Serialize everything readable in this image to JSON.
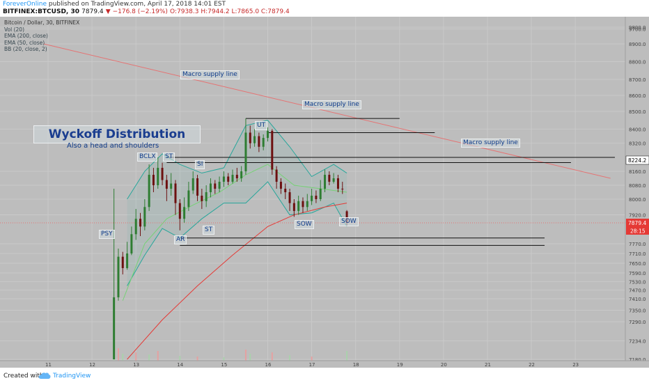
{
  "header": {
    "author": "ForeverOnline",
    "published": " published on TradingView.com, April 17, 2018 14:01 EST",
    "symbol": "BITFINEX:BTCUSD, 30",
    "last": "7879.4",
    "change": "▼ −176.8 (−2.19%)",
    "ohlc": "O:7938.3 H:7944.2 L:7865.0 C:7879.4"
  },
  "legend": {
    "main": "Bitcoin / Dollar, 30, BITFINEX",
    "items": [
      "Vol (20)",
      "EMA (200, close)",
      "EMA (50, close)",
      "BB (20, close, 2)"
    ]
  },
  "annotations": {
    "title": "Wyckoff Distribution",
    "subtitle": "Also a head and shoulders",
    "supply_1": "Macro supply line",
    "supply_2": "Macro supply line",
    "supply_3": "Macro supply line",
    "psy": "PSY",
    "ar": "AR",
    "bclx": "BCLX",
    "st1": "ST",
    "st2": "SI",
    "st3": "ST",
    "ut": "UT",
    "sow1": "SOW",
    "sow2": "SOW"
  },
  "price_badges": {
    "level": "8224.2",
    "last": "7879.4",
    "countdown": "28:15"
  },
  "footer": {
    "created": "Created with",
    "brand": "TradingView"
  },
  "colors": {
    "background": "#bdbdbd",
    "up": "#2e7d32",
    "down": "#6d1010",
    "ema200": "#e53935",
    "ema50": "#76d275",
    "bb": "#26a69a",
    "supply": "#e57373",
    "label_text": "#0d3a8a"
  },
  "chart_data": {
    "type": "candlestick",
    "title": "Bitcoin / Dollar, 30, BITFINEX",
    "y_ticks": [
      9800.0,
      9700.0,
      8900.0,
      8800.0,
      8700.0,
      8600.0,
      8500.0,
      8400.0,
      8320.0,
      8224.2,
      8160.0,
      8080.0,
      8000.0,
      7920.0,
      7879.4,
      7770.0,
      7710.0,
      7650.0,
      7590.0,
      7530.0,
      7470.0,
      7410.0,
      7350.0,
      7290.0,
      7234.0,
      7180.0
    ],
    "x_ticks": [
      "11",
      "12",
      "13",
      "14",
      "15",
      "16",
      "17",
      "18",
      "19",
      "20",
      "21",
      "22",
      "23"
    ],
    "candles": [
      {
        "x": 12.5,
        "o": 7180,
        "c": 7420,
        "h": 8060,
        "l": 7180
      },
      {
        "x": 12.6,
        "o": 7420,
        "c": 7690,
        "h": 7740,
        "l": 7400
      },
      {
        "x": 12.7,
        "o": 7690,
        "c": 7620,
        "h": 7720,
        "l": 7580
      },
      {
        "x": 12.8,
        "o": 7620,
        "c": 7710,
        "h": 7780,
        "l": 7610
      },
      {
        "x": 12.9,
        "o": 7710,
        "c": 7820,
        "h": 7860,
        "l": 7700
      },
      {
        "x": 13.0,
        "o": 7820,
        "c": 7900,
        "h": 7950,
        "l": 7790
      },
      {
        "x": 13.1,
        "o": 7900,
        "c": 7860,
        "h": 7930,
        "l": 7810
      },
      {
        "x": 13.2,
        "o": 7860,
        "c": 7960,
        "h": 8000,
        "l": 7840
      },
      {
        "x": 13.3,
        "o": 7960,
        "c": 8140,
        "h": 8200,
        "l": 7940
      },
      {
        "x": 13.4,
        "o": 8140,
        "c": 8080,
        "h": 8180,
        "l": 8040
      },
      {
        "x": 13.5,
        "o": 8080,
        "c": 8180,
        "h": 8240,
        "l": 8060
      },
      {
        "x": 13.6,
        "o": 8180,
        "c": 8110,
        "h": 8210,
        "l": 8080
      },
      {
        "x": 13.7,
        "o": 8110,
        "c": 8060,
        "h": 8140,
        "l": 7990
      },
      {
        "x": 13.8,
        "o": 8060,
        "c": 8090,
        "h": 8150,
        "l": 8020
      },
      {
        "x": 13.9,
        "o": 8090,
        "c": 7980,
        "h": 8110,
        "l": 7920
      },
      {
        "x": 14.0,
        "o": 7980,
        "c": 7900,
        "h": 8000,
        "l": 7840
      },
      {
        "x": 14.1,
        "o": 7900,
        "c": 7960,
        "h": 8010,
        "l": 7880
      },
      {
        "x": 14.2,
        "o": 7960,
        "c": 8050,
        "h": 8100,
        "l": 7940
      },
      {
        "x": 14.3,
        "o": 8050,
        "c": 8120,
        "h": 8160,
        "l": 8030
      },
      {
        "x": 14.4,
        "o": 8120,
        "c": 8020,
        "h": 8140,
        "l": 7990
      },
      {
        "x": 14.5,
        "o": 8020,
        "c": 7990,
        "h": 8060,
        "l": 7950
      },
      {
        "x": 14.6,
        "o": 7990,
        "c": 8040,
        "h": 8080,
        "l": 7960
      },
      {
        "x": 14.7,
        "o": 8040,
        "c": 8090,
        "h": 8120,
        "l": 8010
      },
      {
        "x": 14.8,
        "o": 8090,
        "c": 8060,
        "h": 8110,
        "l": 8030
      },
      {
        "x": 14.9,
        "o": 8060,
        "c": 8100,
        "h": 8130,
        "l": 8040
      },
      {
        "x": 15.0,
        "o": 8100,
        "c": 8130,
        "h": 8160,
        "l": 8070
      },
      {
        "x": 15.1,
        "o": 8130,
        "c": 8100,
        "h": 8150,
        "l": 8080
      },
      {
        "x": 15.2,
        "o": 8100,
        "c": 8140,
        "h": 8170,
        "l": 8090
      },
      {
        "x": 15.3,
        "o": 8140,
        "c": 8120,
        "h": 8180,
        "l": 8100
      },
      {
        "x": 15.4,
        "o": 8120,
        "c": 8160,
        "h": 8190,
        "l": 8100
      },
      {
        "x": 15.5,
        "o": 8160,
        "c": 8380,
        "h": 8460,
        "l": 8140
      },
      {
        "x": 15.6,
        "o": 8380,
        "c": 8320,
        "h": 8420,
        "l": 8290
      },
      {
        "x": 15.7,
        "o": 8320,
        "c": 8360,
        "h": 8400,
        "l": 8300
      },
      {
        "x": 15.8,
        "o": 8360,
        "c": 8300,
        "h": 8380,
        "l": 8270
      },
      {
        "x": 15.9,
        "o": 8300,
        "c": 8350,
        "h": 8370,
        "l": 8280
      },
      {
        "x": 16.0,
        "o": 8350,
        "c": 8390,
        "h": 8410,
        "l": 8330
      },
      {
        "x": 16.1,
        "o": 8390,
        "c": 8170,
        "h": 8400,
        "l": 8140
      },
      {
        "x": 16.2,
        "o": 8170,
        "c": 8100,
        "h": 8190,
        "l": 8060
      },
      {
        "x": 16.3,
        "o": 8100,
        "c": 8060,
        "h": 8120,
        "l": 8030
      },
      {
        "x": 16.4,
        "o": 8060,
        "c": 8040,
        "h": 8090,
        "l": 8000
      },
      {
        "x": 16.5,
        "o": 8040,
        "c": 7980,
        "h": 8060,
        "l": 7940
      },
      {
        "x": 16.6,
        "o": 7980,
        "c": 7940,
        "h": 8000,
        "l": 7910
      },
      {
        "x": 16.7,
        "o": 7940,
        "c": 7990,
        "h": 8020,
        "l": 7920
      },
      {
        "x": 16.8,
        "o": 7990,
        "c": 7960,
        "h": 8010,
        "l": 7930
      },
      {
        "x": 16.9,
        "o": 7960,
        "c": 7990,
        "h": 8030,
        "l": 7940
      },
      {
        "x": 17.0,
        "o": 7990,
        "c": 8020,
        "h": 8060,
        "l": 7970
      },
      {
        "x": 17.1,
        "o": 8020,
        "c": 8000,
        "h": 8050,
        "l": 7980
      },
      {
        "x": 17.2,
        "o": 8000,
        "c": 8060,
        "h": 8110,
        "l": 7990
      },
      {
        "x": 17.3,
        "o": 8060,
        "c": 8140,
        "h": 8170,
        "l": 8040
      },
      {
        "x": 17.4,
        "o": 8140,
        "c": 8100,
        "h": 8160,
        "l": 8080
      },
      {
        "x": 17.5,
        "o": 8100,
        "c": 8120,
        "h": 8150,
        "l": 8090
      },
      {
        "x": 17.6,
        "o": 8120,
        "c": 8060,
        "h": 8140,
        "l": 8040
      },
      {
        "x": 17.7,
        "o": 8060,
        "c": 8056,
        "h": 8100,
        "l": 8030
      },
      {
        "x": 17.8,
        "o": 7938.3,
        "c": 7879.4,
        "h": 7944.2,
        "l": 7865.0
      }
    ],
    "ema200": [
      {
        "x": 12.8,
        "y": 7180
      },
      {
        "x": 13.6,
        "y": 7300
      },
      {
        "x": 14.4,
        "y": 7500
      },
      {
        "x": 15.2,
        "y": 7700
      },
      {
        "x": 16.0,
        "y": 7860
      },
      {
        "x": 16.6,
        "y": 7920
      },
      {
        "x": 17.3,
        "y": 7960
      },
      {
        "x": 17.8,
        "y": 7980
      }
    ],
    "ema50": [
      {
        "x": 12.7,
        "y": 7400
      },
      {
        "x": 13.2,
        "y": 7770
      },
      {
        "x": 13.7,
        "y": 7900
      },
      {
        "x": 14.3,
        "y": 7970
      },
      {
        "x": 14.9,
        "y": 8040
      },
      {
        "x": 15.5,
        "y": 8140
      },
      {
        "x": 16.0,
        "y": 8200
      },
      {
        "x": 16.6,
        "y": 8080
      },
      {
        "x": 17.2,
        "y": 8060
      },
      {
        "x": 17.8,
        "y": 8040
      }
    ],
    "bb_upper": [
      {
        "x": 12.8,
        "y": 8000
      },
      {
        "x": 13.2,
        "y": 8160
      },
      {
        "x": 13.6,
        "y": 8260
      },
      {
        "x": 14.0,
        "y": 8200
      },
      {
        "x": 14.5,
        "y": 8150
      },
      {
        "x": 15.0,
        "y": 8180
      },
      {
        "x": 15.5,
        "y": 8420
      },
      {
        "x": 16.0,
        "y": 8450
      },
      {
        "x": 16.5,
        "y": 8300
      },
      {
        "x": 17.0,
        "y": 8130
      },
      {
        "x": 17.5,
        "y": 8200
      },
      {
        "x": 17.8,
        "y": 8150
      }
    ],
    "bb_lower": [
      {
        "x": 12.8,
        "y": 7500
      },
      {
        "x": 13.2,
        "y": 7700
      },
      {
        "x": 13.6,
        "y": 7850
      },
      {
        "x": 14.0,
        "y": 7800
      },
      {
        "x": 14.5,
        "y": 7900
      },
      {
        "x": 15.0,
        "y": 7980
      },
      {
        "x": 15.5,
        "y": 7980
      },
      {
        "x": 16.0,
        "y": 8100
      },
      {
        "x": 16.5,
        "y": 7920
      },
      {
        "x": 17.0,
        "y": 7930
      },
      {
        "x": 17.5,
        "y": 7980
      },
      {
        "x": 17.8,
        "y": 7860
      }
    ],
    "supply_line": [
      {
        "x": 10.9,
        "y": 8900
      },
      {
        "x": 23.8,
        "y": 8120
      }
    ],
    "levels": [
      {
        "name": "ut-high",
        "y": 8460,
        "x1": 15.5,
        "x2": 19.0
      },
      {
        "name": "ut-shoulder",
        "y": 8380,
        "x1": 16.0,
        "x2": 19.8
      },
      {
        "name": "bc-top",
        "y": 8240,
        "x1": 13.7,
        "x2": 23.9
      },
      {
        "name": "bc-top-2",
        "y": 8210,
        "x1": 13.7,
        "x2": 22.9
      },
      {
        "name": "ar-low-1",
        "y": 7800,
        "x1": 14.0,
        "x2": 22.3
      },
      {
        "name": "ar-low-2",
        "y": 7760,
        "x1": 14.0,
        "x2": 22.3
      }
    ],
    "volume": [
      {
        "x": 12.5,
        "v": 40
      },
      {
        "x": 12.6,
        "v": 18
      },
      {
        "x": 12.7,
        "v": 10
      },
      {
        "x": 13.0,
        "v": 12
      },
      {
        "x": 13.3,
        "v": 9
      },
      {
        "x": 13.5,
        "v": 14
      },
      {
        "x": 14.0,
        "v": 7
      },
      {
        "x": 14.4,
        "v": 6
      },
      {
        "x": 15.0,
        "v": 5
      },
      {
        "x": 15.5,
        "v": 16
      },
      {
        "x": 15.6,
        "v": 10
      },
      {
        "x": 16.1,
        "v": 12
      },
      {
        "x": 16.5,
        "v": 8
      },
      {
        "x": 17.0,
        "v": 6
      },
      {
        "x": 17.8,
        "v": 14
      }
    ]
  }
}
